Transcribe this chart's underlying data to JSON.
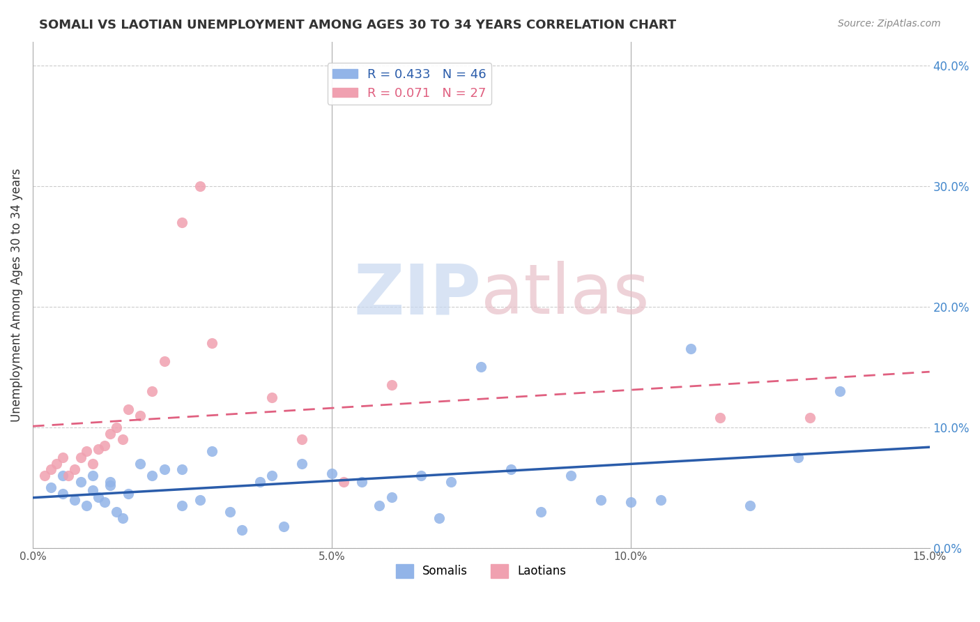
{
  "title": "SOMALI VS LAOTIAN UNEMPLOYMENT AMONG AGES 30 TO 34 YEARS CORRELATION CHART",
  "source": "Source: ZipAtlas.com",
  "xlabel": "",
  "ylabel": "Unemployment Among Ages 30 to 34 years",
  "xlim": [
    0.0,
    0.15
  ],
  "ylim": [
    0.0,
    0.42
  ],
  "xticks": [
    0.0,
    0.05,
    0.1,
    0.15
  ],
  "xticklabels": [
    "0.0%",
    "5.0%",
    "10.0%",
    "15.0%"
  ],
  "yticks_right": [
    0.0,
    0.1,
    0.2,
    0.3,
    0.4
  ],
  "yticklabels_right": [
    "0.0%",
    "10.0%",
    "20.0%",
    "30.0%",
    "40.0%"
  ],
  "somali_R": 0.433,
  "somali_N": 46,
  "laotian_R": 0.071,
  "laotian_N": 27,
  "somali_color": "#92b4e8",
  "laotian_color": "#f0a0b0",
  "somali_line_color": "#2a5caa",
  "laotian_line_color": "#e06080",
  "watermark": "ZIPatlas",
  "watermark_color": "#c8d8f0",
  "watermark_color2": "#e8c0c8",
  "somali_x": [
    0.003,
    0.005,
    0.005,
    0.007,
    0.008,
    0.009,
    0.01,
    0.01,
    0.011,
    0.012,
    0.013,
    0.013,
    0.014,
    0.015,
    0.016,
    0.018,
    0.02,
    0.022,
    0.025,
    0.025,
    0.028,
    0.03,
    0.033,
    0.035,
    0.038,
    0.04,
    0.042,
    0.045,
    0.05,
    0.055,
    0.058,
    0.06,
    0.065,
    0.068,
    0.07,
    0.075,
    0.08,
    0.085,
    0.09,
    0.095,
    0.1,
    0.105,
    0.11,
    0.12,
    0.128,
    0.135
  ],
  "somali_y": [
    0.05,
    0.045,
    0.06,
    0.04,
    0.055,
    0.035,
    0.06,
    0.048,
    0.042,
    0.038,
    0.055,
    0.052,
    0.03,
    0.025,
    0.045,
    0.07,
    0.06,
    0.065,
    0.065,
    0.035,
    0.04,
    0.08,
    0.03,
    0.015,
    0.055,
    0.06,
    0.018,
    0.07,
    0.062,
    0.055,
    0.035,
    0.042,
    0.06,
    0.025,
    0.055,
    0.15,
    0.065,
    0.03,
    0.06,
    0.04,
    0.038,
    0.04,
    0.165,
    0.035,
    0.075,
    0.13
  ],
  "laotian_x": [
    0.002,
    0.003,
    0.004,
    0.005,
    0.006,
    0.007,
    0.008,
    0.009,
    0.01,
    0.011,
    0.012,
    0.013,
    0.014,
    0.015,
    0.016,
    0.018,
    0.02,
    0.022,
    0.025,
    0.028,
    0.03,
    0.04,
    0.045,
    0.052,
    0.06,
    0.115,
    0.13
  ],
  "laotian_y": [
    0.06,
    0.065,
    0.07,
    0.075,
    0.06,
    0.065,
    0.075,
    0.08,
    0.07,
    0.082,
    0.085,
    0.095,
    0.1,
    0.09,
    0.115,
    0.11,
    0.13,
    0.155,
    0.27,
    0.3,
    0.17,
    0.125,
    0.09,
    0.055,
    0.135,
    0.108,
    0.108
  ]
}
